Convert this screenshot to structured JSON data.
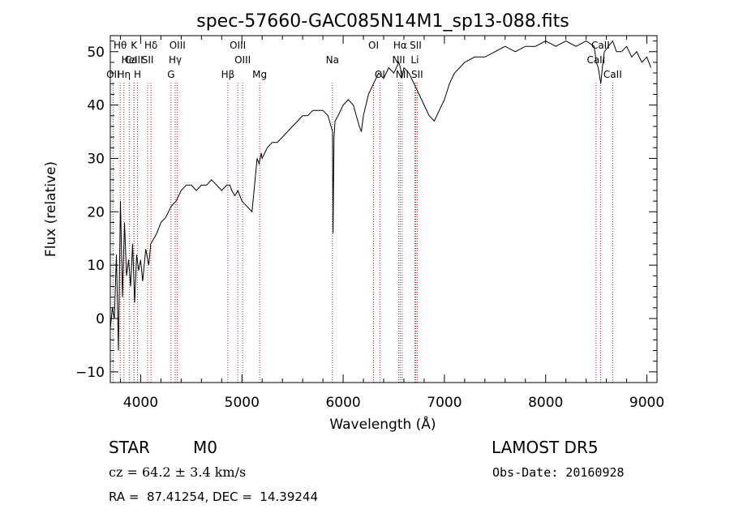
{
  "chart_data": {
    "type": "line",
    "title": "spec-57660-GAC085N14M1_sp13-088.fits",
    "xlabel": "Wavelength (Å)",
    "ylabel": "Flux (relative)",
    "xlim": [
      3700,
      9100
    ],
    "ylim": [
      -12,
      53
    ],
    "xticks": [
      4000,
      5000,
      6000,
      7000,
      8000,
      9000
    ],
    "yticks": [
      -10,
      0,
      10,
      20,
      30,
      40,
      50
    ],
    "grid": false,
    "colors": {
      "spectrum": "#000000",
      "lines": "#b22222",
      "axes": "#000000"
    },
    "spectrum": {
      "name": "Flux",
      "x": [
        3700,
        3720,
        3740,
        3760,
        3780,
        3800,
        3820,
        3840,
        3860,
        3880,
        3900,
        3920,
        3940,
        3960,
        3980,
        4000,
        4020,
        4050,
        4080,
        4100,
        4130,
        4160,
        4200,
        4250,
        4300,
        4350,
        4400,
        4450,
        4500,
        4550,
        4600,
        4650,
        4700,
        4750,
        4800,
        4850,
        4880,
        4900,
        4930,
        4960,
        5000,
        5050,
        5100,
        5150,
        5170,
        5190,
        5200,
        5250,
        5300,
        5350,
        5400,
        5450,
        5500,
        5550,
        5600,
        5650,
        5700,
        5750,
        5800,
        5850,
        5880,
        5895,
        5900,
        5910,
        5920,
        5950,
        6000,
        6050,
        6100,
        6130,
        6160,
        6180,
        6200,
        6250,
        6300,
        6350,
        6400,
        6450,
        6500,
        6550,
        6565,
        6580,
        6600,
        6650,
        6700,
        6750,
        6800,
        6850,
        6900,
        6950,
        7000,
        7050,
        7100,
        7150,
        7200,
        7300,
        7400,
        7500,
        7600,
        7700,
        7800,
        7900,
        8000,
        8100,
        8200,
        8300,
        8400,
        8480,
        8500,
        8520,
        8545,
        8560,
        8580,
        8620,
        8662,
        8700,
        8750,
        8800,
        8850,
        8900,
        8950,
        9000,
        9040
      ],
      "y": [
        -2,
        2,
        0,
        12,
        -6,
        22,
        4,
        18,
        8,
        11,
        6,
        14,
        3,
        12,
        9,
        11,
        7,
        13,
        10,
        14,
        15,
        16,
        18,
        19,
        21,
        22,
        24,
        25,
        25,
        24,
        25,
        25,
        26,
        25,
        24,
        25,
        25,
        24,
        23,
        24,
        22,
        21,
        20,
        30,
        29,
        31,
        30,
        32,
        33,
        33,
        34,
        35,
        36,
        37,
        38,
        38,
        39,
        39,
        39,
        38,
        36,
        35,
        16,
        34,
        37,
        38,
        40,
        41,
        40,
        38,
        36,
        35,
        38,
        42,
        44,
        46,
        45,
        47,
        46,
        48,
        47,
        45,
        47,
        46,
        44,
        42,
        40,
        38,
        37,
        39,
        41,
        44,
        46,
        47,
        48,
        49,
        49,
        50,
        51,
        50,
        51,
        51,
        52,
        51,
        52,
        51,
        52,
        51,
        48,
        47,
        44,
        47,
        50,
        51,
        52,
        50,
        50,
        51,
        49,
        50,
        48,
        49,
        47
      ]
    },
    "line_markers": [
      {
        "label": "CaII",
        "x": 3934,
        "row": 1
      },
      {
        "label": "Hθ",
        "x": 3798,
        "row": 0
      },
      {
        "label": "OII",
        "x": 3727,
        "row": 2
      },
      {
        "label": "Hη",
        "x": 3835,
        "row": 2
      },
      {
        "label": "HeI",
        "x": 3889,
        "row": 1
      },
      {
        "label": "K",
        "x": 3934,
        "row": 0
      },
      {
        "label": "H",
        "x": 3969,
        "row": 2
      },
      {
        "label": "SII",
        "x": 4069,
        "row": 1
      },
      {
        "label": "Hδ",
        "x": 4102,
        "row": 0
      },
      {
        "label": "G",
        "x": 4300,
        "row": 2
      },
      {
        "label": "Hγ",
        "x": 4341,
        "row": 1
      },
      {
        "label": "OIII",
        "x": 4363,
        "row": 0
      },
      {
        "label": "Hβ",
        "x": 4861,
        "row": 2
      },
      {
        "label": "OIII",
        "x": 4959,
        "row": 0
      },
      {
        "label": "OIII",
        "x": 5007,
        "row": 1
      },
      {
        "label": "Mg",
        "x": 5175,
        "row": 2
      },
      {
        "label": "Na",
        "x": 5894,
        "row": 1
      },
      {
        "label": "OI",
        "x": 6300,
        "row": 0
      },
      {
        "label": "OI",
        "x": 6363,
        "row": 2
      },
      {
        "label": "NII",
        "x": 6548,
        "row": 1
      },
      {
        "label": "Hα",
        "x": 6563,
        "row": 0
      },
      {
        "label": "NII",
        "x": 6583,
        "row": 2
      },
      {
        "label": "Li",
        "x": 6708,
        "row": 1
      },
      {
        "label": "SII",
        "x": 6716,
        "row": 0
      },
      {
        "label": "SII",
        "x": 6731,
        "row": 2
      },
      {
        "label": "CaII",
        "x": 8498,
        "row": 1
      },
      {
        "label": "CaII",
        "x": 8542,
        "row": 0
      },
      {
        "label": "CaII",
        "x": 8662,
        "row": 2
      }
    ]
  },
  "info": {
    "object_class": "STAR",
    "subclass": "M0",
    "survey": "LAMOST DR5",
    "cz": "cz = 64.2 ± 3.4 km/s",
    "obs_date": "Obs-Date: 20160928",
    "coords": "RA =  87.41254, DEC =  14.39244"
  }
}
